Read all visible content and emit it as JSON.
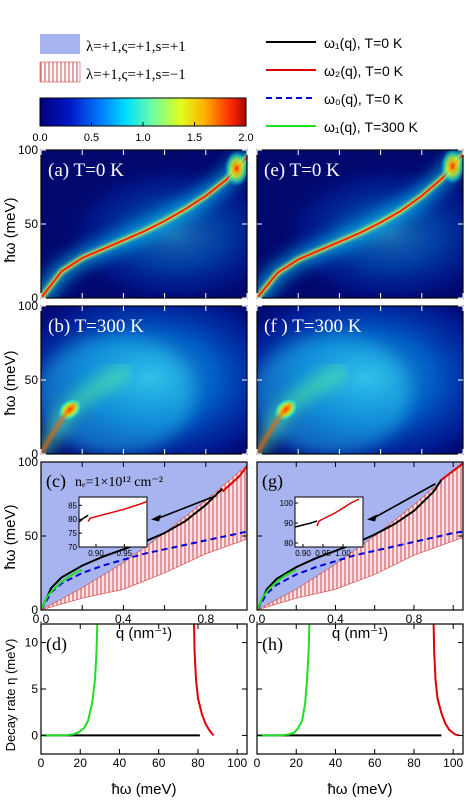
{
  "legend": {
    "regions": [
      {
        "label": "λ=+1,ς=+1,s=+1",
        "fill": "#a8b4f0",
        "hatch": false
      },
      {
        "label": "λ=+1,ς=+1,s=−1",
        "fill": "#ffffff",
        "hatch": true,
        "hatch_color": "#d04848"
      }
    ],
    "lines": [
      {
        "label": "ω₁(q), T=0 K",
        "color": "#000000",
        "dash": false
      },
      {
        "label": "ω₂(q), T=0 K",
        "color": "#e00000",
        "dash": false
      },
      {
        "label": "ω₀(q), T=0 K",
        "color": "#0000dd",
        "dash": true
      },
      {
        "label": "ω₁(q), T=300 K",
        "color": "#22dd22",
        "dash": false
      }
    ]
  },
  "colorbar": {
    "ticks": [
      "0.0",
      "0.5",
      "1.0",
      "1.5",
      "2.0"
    ],
    "range": [
      0,
      2
    ]
  },
  "axes_text": {
    "ylabel_omega": "ħω (meV)",
    "xlabel_q": "q (nm⁻¹)",
    "xlabel_omega": "ħω (meV)",
    "ylabel_decay": "Decay rate η (meV)"
  },
  "panel_labels": {
    "a": "(a) T=0 K",
    "e": "(e) T=0 K",
    "b": "(b) T=300 K",
    "f": "(f ) T=300 K",
    "c": "(c)",
    "c_extra": "nₑ=1×10¹² cm⁻²",
    "g": "(g)",
    "d": "(d)",
    "h": "(h)"
  },
  "chart_data": [
    {
      "id": "a",
      "type": "heatmap",
      "xlim": [
        0,
        1.0
      ],
      "ylim": [
        0,
        100
      ],
      "yticks": [
        "0",
        "50",
        "100"
      ],
      "temperature": "T=0 K",
      "ridge_q": [
        0,
        0.1,
        0.2,
        0.3,
        0.4,
        0.5,
        0.6,
        0.7,
        0.8,
        0.9,
        1.0
      ],
      "ridge_omega": [
        0,
        18,
        27,
        33,
        39,
        45,
        52,
        60,
        69,
        80,
        95
      ]
    },
    {
      "id": "e",
      "type": "heatmap",
      "xlim": [
        0,
        1.0
      ],
      "ylim": [
        0,
        100
      ],
      "temperature": "T=0 K",
      "ridge_q": [
        0,
        0.1,
        0.2,
        0.3,
        0.4,
        0.5,
        0.6,
        0.7,
        0.8,
        0.9,
        1.0
      ],
      "ridge_omega": [
        0,
        17,
        26,
        32,
        38,
        44,
        51,
        59,
        69,
        81,
        97
      ]
    },
    {
      "id": "b",
      "type": "heatmap",
      "xlim": [
        0,
        1.0
      ],
      "ylim": [
        0,
        100
      ],
      "yticks": [
        "0",
        "50",
        "100"
      ],
      "temperature": "T=300 K",
      "peak": {
        "q": 0.14,
        "omega": 30
      }
    },
    {
      "id": "f",
      "type": "heatmap",
      "xlim": [
        0,
        1.0
      ],
      "ylim": [
        0,
        100
      ],
      "temperature": "T=300 K",
      "peak": {
        "q": 0.14,
        "omega": 30
      }
    },
    {
      "id": "c",
      "type": "line",
      "xlim": [
        0,
        1.0
      ],
      "ylim": [
        0,
        100
      ],
      "xticks": [
        "0.0",
        "0.4",
        "0.8"
      ],
      "yticks": [
        "0",
        "50",
        "100"
      ],
      "series": [
        {
          "ref": "ω₁(q), T=0 K",
          "x": [
            0,
            0.05,
            0.1,
            0.2,
            0.3,
            0.4,
            0.5,
            0.6,
            0.7,
            0.8,
            0.88
          ],
          "y": [
            0,
            15,
            22,
            30,
            36,
            41,
            46,
            52,
            60,
            71,
            82
          ]
        },
        {
          "ref": "ω₂(q), T=0 K",
          "x": [
            0.88,
            0.92,
            0.96,
            1.0
          ],
          "y": [
            80,
            85,
            90,
            97
          ]
        },
        {
          "ref": "ω₀(q), T=0 K",
          "x": [
            0,
            0.05,
            0.1,
            0.2,
            0.3,
            0.4,
            0.5,
            0.6,
            0.7,
            0.8,
            0.9,
            1.0
          ],
          "y": [
            0,
            12,
            18,
            25,
            30,
            34,
            38,
            41,
            44,
            47,
            50,
            53
          ]
        },
        {
          "ref": "ω₁(q), T=300 K",
          "x": [
            0,
            0.03,
            0.06,
            0.1,
            0.14,
            0.18,
            0.2
          ],
          "y": [
            0,
            9,
            14,
            19,
            23,
            26,
            27
          ]
        }
      ],
      "regions": {
        "spp_lower": {
          "x": [
            0,
            0.2,
            0.4,
            0.6,
            0.8,
            1.0
          ],
          "y": [
            0,
            15,
            32,
            52,
            74,
            98
          ]
        },
        "spm_lower": {
          "x": [
            0,
            0.2,
            0.4,
            0.6,
            0.8,
            1.0
          ],
          "y": [
            0,
            8,
            14,
            25,
            38,
            48
          ]
        }
      },
      "inset": {
        "xlim": [
          0.87,
          0.99
        ],
        "ylim": [
          70,
          88
        ],
        "xticks": [
          "0.90",
          "0.95"
        ],
        "yticks": [
          "70",
          "75",
          "80",
          "85"
        ],
        "black": {
          "x": [
            0.87,
            0.878,
            0.886
          ],
          "y": [
            79,
            80.4,
            81.4
          ]
        },
        "red": {
          "x": [
            0.886,
            0.89,
            0.92,
            0.95,
            0.98,
            0.99
          ],
          "y": [
            79.2,
            80.4,
            82.0,
            83.6,
            85.6,
            86.4
          ]
        }
      }
    },
    {
      "id": "g",
      "type": "line",
      "xlim": [
        0,
        1.05
      ],
      "ylim": [
        0,
        100
      ],
      "xticks": [
        "0.0",
        "0.4",
        "0.8"
      ],
      "series": [
        {
          "ref": "ω₁(q), T=0 K",
          "x": [
            0,
            0.05,
            0.1,
            0.2,
            0.3,
            0.4,
            0.5,
            0.6,
            0.7,
            0.8,
            0.9,
            0.94
          ],
          "y": [
            0,
            14,
            21,
            29,
            35,
            40,
            45,
            51,
            58,
            67,
            80,
            88
          ]
        },
        {
          "ref": "ω₂(q), T=0 K",
          "x": [
            0.94,
            0.98,
            1.02,
            1.05
          ],
          "y": [
            88,
            92,
            96,
            99
          ]
        },
        {
          "ref": "ω₀(q), T=0 K",
          "x": [
            0,
            0.05,
            0.1,
            0.2,
            0.3,
            0.4,
            0.5,
            0.6,
            0.7,
            0.8,
            0.9,
            1.0,
            1.05
          ],
          "y": [
            0,
            11,
            17,
            24,
            29,
            33,
            37,
            40,
            43,
            46,
            49,
            52,
            53
          ]
        },
        {
          "ref": "ω₁(q), T=300 K",
          "x": [
            0,
            0.03,
            0.06,
            0.1,
            0.14,
            0.18,
            0.2
          ],
          "y": [
            0,
            9,
            14,
            19,
            23,
            26,
            27
          ]
        }
      ],
      "regions": {
        "spp_lower": {
          "x": [
            0,
            0.2,
            0.4,
            0.6,
            0.8,
            1.05
          ],
          "y": [
            0,
            14,
            31,
            50,
            71,
            100
          ]
        },
        "spm_lower": {
          "x": [
            0,
            0.2,
            0.4,
            0.6,
            0.8,
            1.05
          ],
          "y": [
            0,
            8,
            14,
            24,
            37,
            49
          ]
        }
      },
      "inset": {
        "xlim": [
          0.88,
          1.05
        ],
        "ylim": [
          78,
          103
        ],
        "xticks": [
          "0.90",
          "0.95",
          "1.00"
        ],
        "yticks": [
          "80",
          "90",
          "100"
        ],
        "black": {
          "x": [
            0.88,
            0.9,
            0.92,
            0.935
          ],
          "y": [
            88,
            89,
            90,
            91
          ]
        },
        "red": {
          "x": [
            0.935,
            0.94,
            0.96,
            0.98,
            1.0,
            1.02,
            1.04
          ],
          "y": [
            88.5,
            91,
            93,
            95,
            97.5,
            100,
            102
          ]
        }
      }
    },
    {
      "id": "d",
      "type": "line",
      "xlim": [
        0,
        105
      ],
      "ylim": [
        -2,
        12
      ],
      "xticks": [
        "0",
        "20",
        "40",
        "60",
        "80",
        "100"
      ],
      "yticks": [
        "0",
        "5",
        "10"
      ],
      "series": [
        {
          "ref": "ω₁(q), T=0 K",
          "x": [
            0,
            81
          ],
          "y": [
            0,
            0
          ]
        },
        {
          "ref": "ω₂(q), T=0 K",
          "x": [
            78,
            78.3,
            79,
            80,
            82,
            84,
            86,
            88
          ],
          "y": [
            12,
            9,
            6,
            4,
            2.3,
            1.2,
            0.5,
            0
          ]
        },
        {
          "ref": "ω₁(q), T=300 K",
          "x": [
            0,
            12,
            16,
            19,
            22,
            24,
            26,
            27.5,
            28.3,
            28.7
          ],
          "y": [
            0,
            0,
            0.1,
            0.3,
            0.8,
            1.6,
            3.4,
            6,
            9,
            12
          ]
        }
      ]
    },
    {
      "id": "h",
      "type": "line",
      "xlim": [
        0,
        105
      ],
      "ylim": [
        -2,
        12
      ],
      "xticks": [
        "0",
        "20",
        "40",
        "60",
        "80",
        "100"
      ],
      "series": [
        {
          "ref": "ω₁(q), T=0 K",
          "x": [
            0,
            94
          ],
          "y": [
            0,
            0
          ]
        },
        {
          "ref": "ω₂(q), T=0 K",
          "x": [
            90,
            90.3,
            91,
            92,
            94,
            96,
            98,
            101,
            103
          ],
          "y": [
            12,
            9,
            6,
            4,
            2.4,
            1.3,
            0.6,
            0.1,
            0
          ]
        },
        {
          "ref": "ω₁(q), T=300 K",
          "x": [
            0,
            12,
            16,
            19,
            21,
            23,
            24.5,
            25.5,
            26.3,
            26.7
          ],
          "y": [
            0,
            0,
            0.1,
            0.3,
            0.8,
            1.6,
            3.4,
            6,
            9,
            12
          ]
        }
      ]
    }
  ]
}
